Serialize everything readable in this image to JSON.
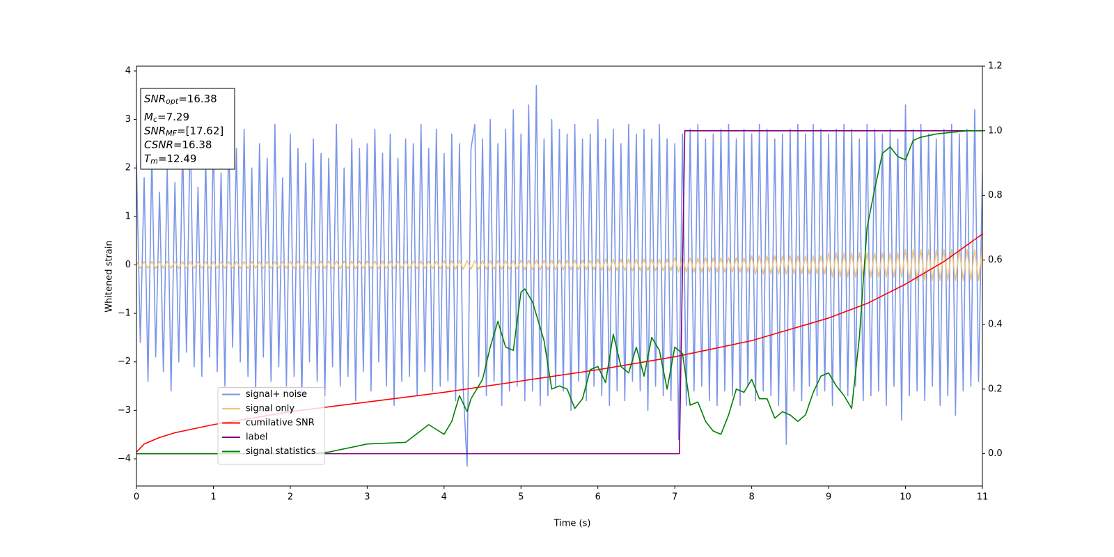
{
  "chart_data": {
    "type": "line",
    "xlabel": "Time (s)",
    "ylabel": "Whitened strain",
    "xlim": [
      0,
      11
    ],
    "ylim": [
      -4.56,
      4.1
    ],
    "y2lim": [
      -0.1,
      1.2
    ],
    "xticks": [
      0,
      1,
      2,
      3,
      4,
      5,
      6,
      7,
      8,
      9,
      10,
      11
    ],
    "yticks": [
      {
        "value": -4,
        "label": "−4"
      },
      {
        "value": -3,
        "label": "−3"
      },
      {
        "value": -2,
        "label": "−2"
      },
      {
        "value": -1,
        "label": "−1"
      },
      0,
      1,
      2,
      3,
      4
    ],
    "y2ticks": [
      {
        "value": 0,
        "label": "0.0"
      },
      0.2,
      0.4,
      0.6,
      0.8,
      {
        "value": 1,
        "label": "1.0"
      },
      1.2
    ],
    "legend": "lower left",
    "annotation": [
      {
        "symbol": "SNR",
        "subscript": "opt",
        "text": "=16.38"
      },
      {
        "symbol": "M",
        "subscript": "c",
        "text": "=7.29"
      },
      {
        "symbol": "SNR",
        "subscript": "MF",
        "text": "=[17.62]"
      },
      {
        "symbol": "CSNR",
        "text": "=16.38"
      },
      {
        "symbol": "T",
        "subscript": "m",
        "text": "=12.49"
      }
    ],
    "x": [
      0,
      0.05,
      0.1,
      0.15,
      0.2,
      0.25,
      0.3,
      0.35,
      0.4,
      0.45,
      0.5,
      0.55,
      0.6,
      0.65,
      0.7,
      0.75,
      0.8,
      0.85,
      0.9,
      0.95,
      1,
      1.05,
      1.1,
      1.15,
      1.2,
      1.25,
      1.3,
      1.35,
      1.4,
      1.45,
      1.5,
      1.55,
      1.6,
      1.65,
      1.7,
      1.75,
      1.8,
      1.85,
      1.9,
      1.95,
      2,
      2.05,
      2.1,
      2.15,
      2.2,
      2.25,
      2.3,
      2.35,
      2.4,
      2.45,
      2.5,
      2.55,
      2.6,
      2.65,
      2.7,
      2.75,
      2.8,
      2.85,
      2.9,
      2.95,
      3,
      3.05,
      3.1,
      3.15,
      3.2,
      3.25,
      3.3,
      3.35,
      3.4,
      3.45,
      3.5,
      3.55,
      3.6,
      3.65,
      3.7,
      3.75,
      3.8,
      3.85,
      3.9,
      3.95,
      4,
      4.05,
      4.1,
      4.15,
      4.2,
      4.25,
      4.3,
      4.35,
      4.4,
      4.45,
      4.5,
      4.55,
      4.6,
      4.65,
      4.7,
      4.75,
      4.8,
      4.85,
      4.9,
      4.95,
      5,
      5.05,
      5.1,
      5.15,
      5.2,
      5.25,
      5.3,
      5.35,
      5.4,
      5.45,
      5.5,
      5.55,
      5.6,
      5.65,
      5.7,
      5.75,
      5.8,
      5.85,
      5.9,
      5.95,
      6,
      6.05,
      6.1,
      6.15,
      6.2,
      6.25,
      6.3,
      6.35,
      6.4,
      6.45,
      6.5,
      6.55,
      6.6,
      6.65,
      6.7,
      6.75,
      6.8,
      6.85,
      6.9,
      6.95,
      7,
      7.05,
      7.1,
      7.15,
      7.2,
      7.25,
      7.3,
      7.35,
      7.4,
      7.45,
      7.5,
      7.55,
      7.6,
      7.65,
      7.7,
      7.75,
      7.8,
      7.85,
      7.9,
      7.95,
      8,
      8.05,
      8.1,
      8.15,
      8.2,
      8.25,
      8.3,
      8.35,
      8.4,
      8.45,
      8.5,
      8.55,
      8.6,
      8.65,
      8.7,
      8.75,
      8.8,
      8.85,
      8.9,
      8.95,
      9,
      9.05,
      9.1,
      9.15,
      9.2,
      9.25,
      9.3,
      9.35,
      9.4,
      9.45,
      9.5,
      9.55,
      9.6,
      9.65,
      9.7,
      9.75,
      9.8,
      9.85,
      9.9,
      9.95,
      10,
      10.05,
      10.1,
      10.15,
      10.2,
      10.25,
      10.3,
      10.35,
      10.4,
      10.45,
      10.5,
      10.55,
      10.6,
      10.65,
      10.7,
      10.75,
      10.8,
      10.85,
      10.9,
      10.95,
      11
    ],
    "series": [
      {
        "name": "signal+ noise",
        "color": "#7b96e8",
        "values": [
          2.1,
          -1.6,
          1.8,
          -2.4,
          2.3,
          -1.9,
          1.5,
          -2.2,
          2.0,
          -2.6,
          1.7,
          -2.0,
          2.5,
          -1.8,
          2.9,
          -2.1,
          1.6,
          -2.3,
          2.2,
          -1.9,
          2.6,
          -2.2,
          1.9,
          -2.5,
          2.7,
          -1.7,
          2.4,
          -2.0,
          2.8,
          -2.3,
          2.0,
          -2.6,
          2.5,
          -1.9,
          2.2,
          -2.4,
          2.9,
          -2.1,
          1.8,
          -2.5,
          2.7,
          -2.3,
          2.4,
          -2.8,
          2.1,
          -2.0,
          2.6,
          -2.4,
          2.3,
          -2.7,
          2.2,
          -2.1,
          2.9,
          -2.5,
          2.0,
          -2.3,
          2.6,
          -2.8,
          2.4,
          -2.2,
          2.5,
          -2.6,
          2.8,
          -2.0,
          2.3,
          -2.5,
          2.7,
          -2.9,
          2.2,
          -2.4,
          2.6,
          -2.3,
          2.5,
          -2.7,
          2.9,
          -2.2,
          2.4,
          -2.6,
          2.8,
          -2.5,
          2.3,
          -2.4,
          2.7,
          -2.8,
          2.5,
          -2.6,
          -4.15,
          2.4,
          2.9,
          -2.3,
          2.6,
          -2.7,
          3.0,
          -2.4,
          2.5,
          -2.9,
          2.8,
          -2.6,
          3.2,
          -2.5,
          2.7,
          -2.8,
          3.3,
          -2.6,
          3.7,
          -2.9,
          2.6,
          -2.7,
          3.0,
          -2.5,
          2.8,
          -2.6,
          2.7,
          -3.0,
          2.9,
          -2.4,
          2.6,
          -2.8,
          2.7,
          -2.5,
          3.0,
          -2.7,
          2.6,
          -2.9,
          2.8,
          -2.6,
          2.5,
          -2.8,
          2.9,
          -2.4,
          2.7,
          -2.6,
          2.8,
          -3.0,
          2.6,
          -2.5,
          2.9,
          -2.7,
          2.6,
          -2.8,
          2.5,
          -3.6,
          2.7,
          -2.9,
          2.8,
          -2.6,
          2.9,
          -2.5,
          2.6,
          -2.8,
          2.7,
          -2.9,
          2.8,
          -2.6,
          2.9,
          -2.7,
          2.6,
          -2.9,
          2.8,
          -2.5,
          2.7,
          -2.8,
          2.9,
          -2.6,
          2.8,
          -2.7,
          2.6,
          -2.9,
          2.7,
          -3.7,
          2.8,
          -2.6,
          2.9,
          -2.8,
          2.7,
          -2.5,
          2.9,
          -2.7,
          2.8,
          -2.6,
          2.7,
          -2.9,
          2.8,
          -2.6,
          2.9,
          -2.7,
          2.8,
          -2.5,
          2.6,
          -2.8,
          2.9,
          -2.7,
          2.8,
          -2.6,
          2.7,
          -2.9,
          2.8,
          -2.5,
          2.6,
          -3.2,
          3.3,
          -2.7,
          2.8,
          -2.6,
          2.9,
          -2.8,
          2.7,
          -2.5,
          2.6,
          -2.9,
          2.8,
          -2.7,
          2.9,
          -3.1,
          2.7,
          -2.6,
          2.8,
          -2.5,
          3.2,
          -2.4,
          1.9
        ]
      },
      {
        "name": "signal only",
        "color": "#f2c47c",
        "values": [
          0.07,
          -0.07,
          0.07,
          -0.07,
          0.07,
          -0.07,
          0.07,
          -0.07,
          0.07,
          -0.07,
          0.07,
          -0.07,
          0.07,
          -0.07,
          0.07,
          -0.07,
          0.07,
          -0.07,
          0.07,
          -0.07,
          0.07,
          -0.07,
          0.07,
          -0.07,
          0.07,
          -0.07,
          0.07,
          -0.07,
          0.07,
          -0.07,
          0.07,
          -0.07,
          0.07,
          -0.07,
          0.07,
          -0.07,
          0.07,
          -0.07,
          0.07,
          -0.07,
          0.08,
          -0.08,
          0.08,
          -0.08,
          0.08,
          -0.08,
          0.08,
          -0.08,
          0.08,
          -0.08,
          0.08,
          -0.08,
          0.08,
          -0.08,
          0.08,
          -0.08,
          0.08,
          -0.08,
          0.08,
          -0.08,
          0.08,
          -0.08,
          0.08,
          -0.08,
          0.08,
          -0.08,
          0.08,
          -0.08,
          0.08,
          -0.08,
          0.08,
          -0.08,
          0.08,
          -0.08,
          0.08,
          -0.08,
          0.08,
          -0.08,
          0.08,
          -0.08,
          0.09,
          -0.09,
          0.09,
          -0.09,
          0.09,
          -0.09,
          0.09,
          -0.09,
          0.09,
          -0.09,
          0.09,
          -0.09,
          0.09,
          -0.09,
          0.09,
          -0.09,
          0.09,
          -0.09,
          0.09,
          -0.09,
          0.1,
          -0.1,
          0.1,
          -0.1,
          0.1,
          -0.1,
          0.1,
          -0.1,
          0.1,
          -0.1,
          0.1,
          -0.1,
          0.1,
          -0.1,
          0.1,
          -0.1,
          0.1,
          -0.1,
          0.1,
          -0.1,
          0.12,
          -0.12,
          0.12,
          -0.12,
          0.12,
          -0.12,
          0.12,
          -0.12,
          0.12,
          -0.12,
          0.12,
          -0.12,
          0.12,
          -0.12,
          0.12,
          -0.12,
          0.12,
          -0.12,
          0.12,
          -0.12,
          0.15,
          -0.15,
          0.15,
          -0.15,
          0.15,
          -0.15,
          0.15,
          -0.15,
          0.15,
          -0.15,
          0.15,
          -0.15,
          0.15,
          -0.15,
          0.15,
          -0.15,
          0.15,
          -0.15,
          0.15,
          -0.15,
          0.19,
          -0.19,
          0.19,
          -0.19,
          0.19,
          -0.19,
          0.19,
          -0.19,
          0.19,
          -0.19,
          0.19,
          -0.19,
          0.19,
          -0.19,
          0.19,
          -0.19,
          0.19,
          -0.19,
          0.19,
          -0.19,
          0.25,
          -0.25,
          0.25,
          -0.25,
          0.25,
          -0.25,
          0.25,
          -0.25,
          0.25,
          -0.25,
          0.25,
          -0.25,
          0.25,
          -0.25,
          0.25,
          -0.25,
          0.25,
          -0.25,
          0.25,
          -0.25,
          0.32,
          -0.32,
          0.32,
          -0.32,
          0.32,
          -0.32,
          0.32,
          -0.32,
          0.32,
          -0.32,
          0.32,
          -0.32,
          0.32,
          -0.32,
          0.32,
          -0.32,
          0.32,
          -0.32,
          0.32,
          -0.32,
          0.38
        ]
      },
      {
        "name": "cumilative SNR",
        "color": "#ff0000",
        "axis": "y2",
        "x": [
          0,
          0.1,
          0.3,
          0.5,
          1,
          1.5,
          2,
          3,
          4,
          5,
          6,
          7,
          8,
          9,
          9.5,
          10,
          10.5,
          11
        ],
        "values": [
          0.005,
          0.03,
          0.05,
          0.065,
          0.09,
          0.11,
          0.13,
          0.16,
          0.19,
          0.225,
          0.26,
          0.3,
          0.35,
          0.42,
          0.465,
          0.525,
          0.595,
          0.68
        ]
      },
      {
        "name": "label",
        "color": "#800080",
        "axis": "y2",
        "x": [
          0,
          7.06,
          7.13,
          11
        ],
        "values": [
          0,
          0,
          1,
          1
        ]
      },
      {
        "name": "signal statistics",
        "color": "#008000",
        "axis": "y2",
        "x": [
          0,
          2.2,
          2.5,
          3,
          3.5,
          3.8,
          4,
          4.1,
          4.2,
          4.3,
          4.35,
          4.5,
          4.6,
          4.7,
          4.8,
          4.9,
          5,
          5.05,
          5.15,
          5.3,
          5.4,
          5.5,
          5.6,
          5.7,
          5.8,
          5.9,
          6,
          6.1,
          6.2,
          6.3,
          6.4,
          6.5,
          6.6,
          6.7,
          6.8,
          6.9,
          7,
          7.1,
          7.2,
          7.3,
          7.4,
          7.5,
          7.6,
          7.7,
          7.8,
          7.9,
          8,
          8.1,
          8.2,
          8.3,
          8.4,
          8.5,
          8.6,
          8.7,
          8.8,
          8.9,
          9,
          9.1,
          9.2,
          9.3,
          9.4,
          9.5,
          9.6,
          9.7,
          9.8,
          9.9,
          10,
          10.1,
          10.2,
          10.4,
          10.6,
          10.8,
          11
        ],
        "values": [
          0,
          0,
          0.005,
          0.03,
          0.035,
          0.09,
          0.06,
          0.1,
          0.18,
          0.13,
          0.17,
          0.23,
          0.33,
          0.41,
          0.33,
          0.32,
          0.5,
          0.51,
          0.47,
          0.35,
          0.2,
          0.21,
          0.2,
          0.14,
          0.17,
          0.26,
          0.27,
          0.22,
          0.37,
          0.27,
          0.25,
          0.33,
          0.24,
          0.36,
          0.32,
          0.2,
          0.33,
          0.31,
          0.15,
          0.16,
          0.1,
          0.07,
          0.06,
          0.12,
          0.2,
          0.19,
          0.23,
          0.17,
          0.17,
          0.11,
          0.13,
          0.12,
          0.1,
          0.12,
          0.19,
          0.24,
          0.25,
          0.21,
          0.18,
          0.14,
          0.36,
          0.7,
          0.82,
          0.93,
          0.95,
          0.92,
          0.91,
          0.97,
          0.98,
          0.99,
          0.995,
          1.0,
          1.0
        ]
      }
    ]
  }
}
